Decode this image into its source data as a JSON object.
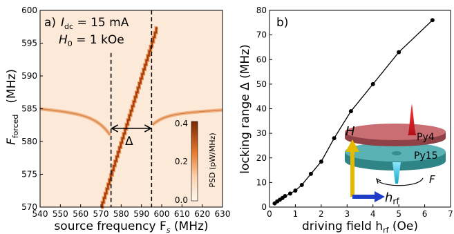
{
  "chart_data": [
    {
      "panel": "a)",
      "type": "heatmap",
      "annotation_line1": "I",
      "annotation_line1_sub": "dc",
      "annotation_line1_val": " = 15 mA",
      "annotation_line2": "H",
      "annotation_line2_sub": "0",
      "annotation_line2_val": " = 1 kOe",
      "delta_label": "Δ",
      "xlabel": "source frequency F",
      "xlabel_sub": "s",
      "xlabel_unit": " (MHz)",
      "ylabel": "F",
      "ylabel_sub": "forced",
      "ylabel_unit": "(MHz)",
      "xlim": [
        540,
        630
      ],
      "ylim": [
        570,
        600
      ],
      "x_ticks": [
        "540",
        "550",
        "560",
        "570",
        "580",
        "590",
        "600",
        "610",
        "620",
        "630"
      ],
      "y_ticks": [
        "570",
        "575",
        "580",
        "585",
        "590",
        "595",
        "600"
      ],
      "colorbar": {
        "label": "PSD  (pW/MHz)",
        "range": [
          0.0,
          0.4
        ],
        "ticks": [
          "0.0",
          "0.2",
          "0.4"
        ]
      },
      "locking_range_MHz": [
        575,
        595
      ],
      "free_running_frequency_MHz": 585,
      "colors": {
        "background": "#fde9d8",
        "trace": "#a83c07",
        "trace_faint": "#f2b890"
      }
    },
    {
      "panel": "b)",
      "type": "line",
      "xlabel": "driving field h",
      "xlabel_sub": "rf",
      "xlabel_unit": " (Oe)",
      "ylabel": "locking range Δ (MHz)",
      "xlim": [
        0,
        7
      ],
      "ylim": [
        0,
        80
      ],
      "x_ticks": [
        "0",
        "1",
        "2",
        "3",
        "4",
        "5",
        "6",
        "7"
      ],
      "y_ticks": [
        "0",
        "10",
        "20",
        "30",
        "40",
        "50",
        "60",
        "70",
        "80"
      ],
      "x": [
        0.2,
        0.3,
        0.4,
        0.5,
        0.6,
        0.8,
        1.0,
        1.25,
        1.6,
        2.0,
        2.5,
        3.15,
        4.0,
        5.0,
        6.3
      ],
      "y": [
        1.5,
        2.3,
        3.0,
        3.7,
        4.5,
        5.5,
        6.7,
        9.0,
        13.5,
        18.5,
        28,
        39,
        50,
        63,
        76
      ],
      "inset": {
        "layer_top": "Py4",
        "layer_bottom": "Py15",
        "field_label": "H",
        "rf_label": "h",
        "rf_label_sub": "rf",
        "force_label": "F",
        "colors": {
          "py4": "#c96f73",
          "py15": "#4aa3a6",
          "peak": "#e21f26",
          "h_arrow": "#e6b800",
          "hrf_arrow": "#1f3cc7"
        }
      }
    }
  ]
}
